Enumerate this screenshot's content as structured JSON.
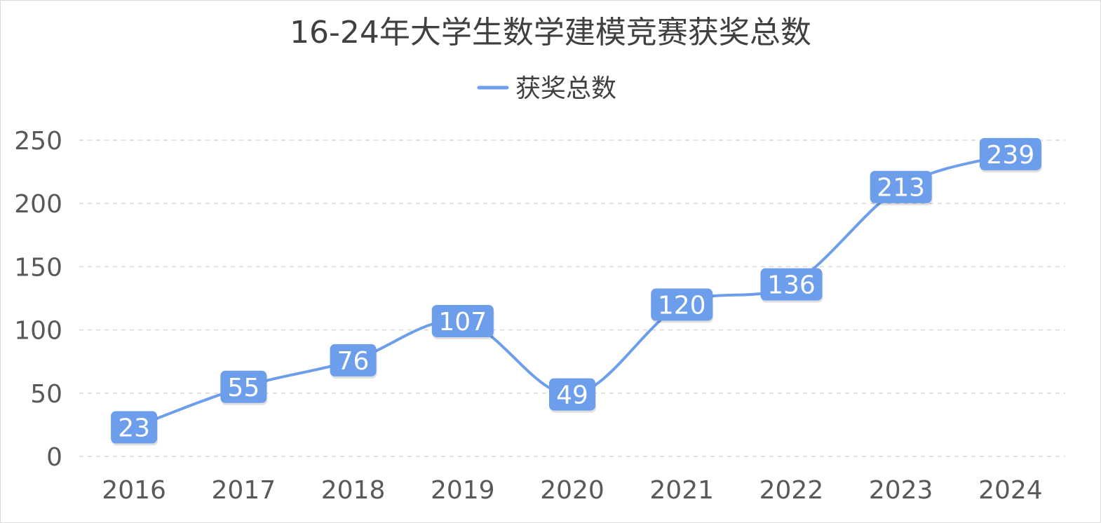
{
  "chart_data": {
    "type": "line",
    "title": "16-24年大学生数学建模竞赛获奖总数",
    "xlabel": "",
    "ylabel": "",
    "categories": [
      "2016",
      "2017",
      "2018",
      "2019",
      "2020",
      "2021",
      "2022",
      "2023",
      "2024"
    ],
    "series": [
      {
        "name": "获奖总数",
        "values": [
          23,
          55,
          76,
          107,
          49,
          120,
          136,
          213,
          239
        ],
        "color": "#6d9eeb",
        "smooth": true
      }
    ],
    "ylim": [
      0,
      250
    ],
    "yticks": [
      "0",
      "50",
      "100",
      "150",
      "200",
      "250"
    ],
    "grid": true,
    "grid_style": "dashed-horizontal",
    "legend_position": "top-center",
    "data_labels": true,
    "data_label_background": "#6d9eeb",
    "data_label_text_color": "#ffffff"
  }
}
